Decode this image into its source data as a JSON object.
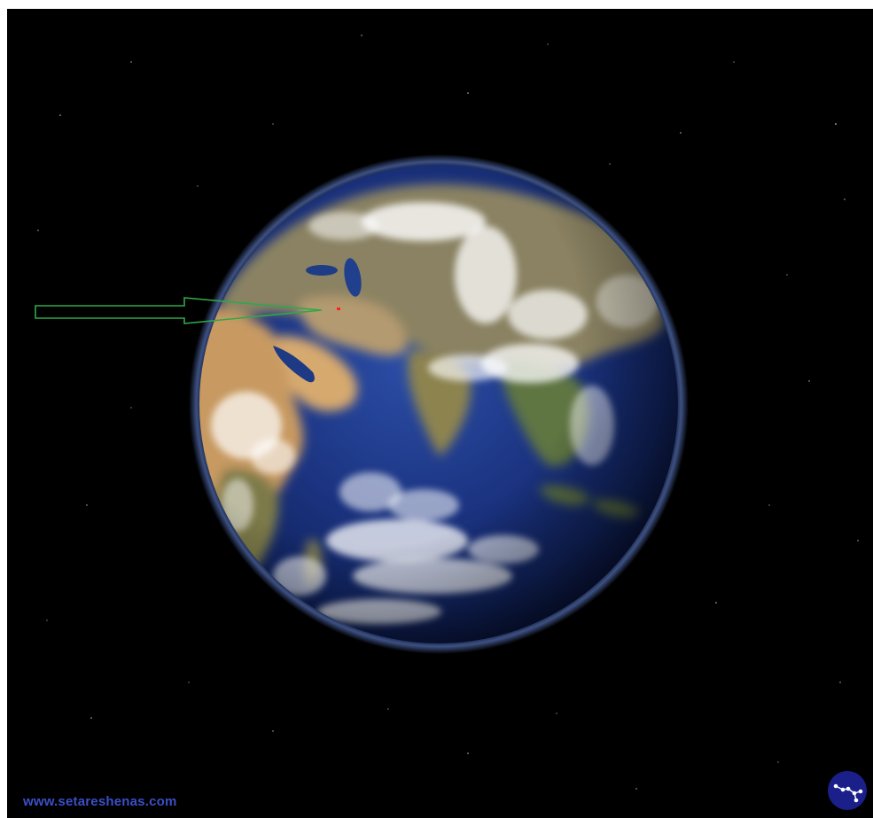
{
  "image": {
    "subject": "earth-from-space",
    "background_color": "#000000",
    "arrow_color": "#2fa84a",
    "marker_color": "#ff2020"
  },
  "watermark": {
    "url_text": "www.setareshenas.com",
    "url_color": "#3b4fc8"
  },
  "logo": {
    "icon": "constellation-icon",
    "background_color": "#1a1f8a",
    "line_color": "#ffffff"
  }
}
